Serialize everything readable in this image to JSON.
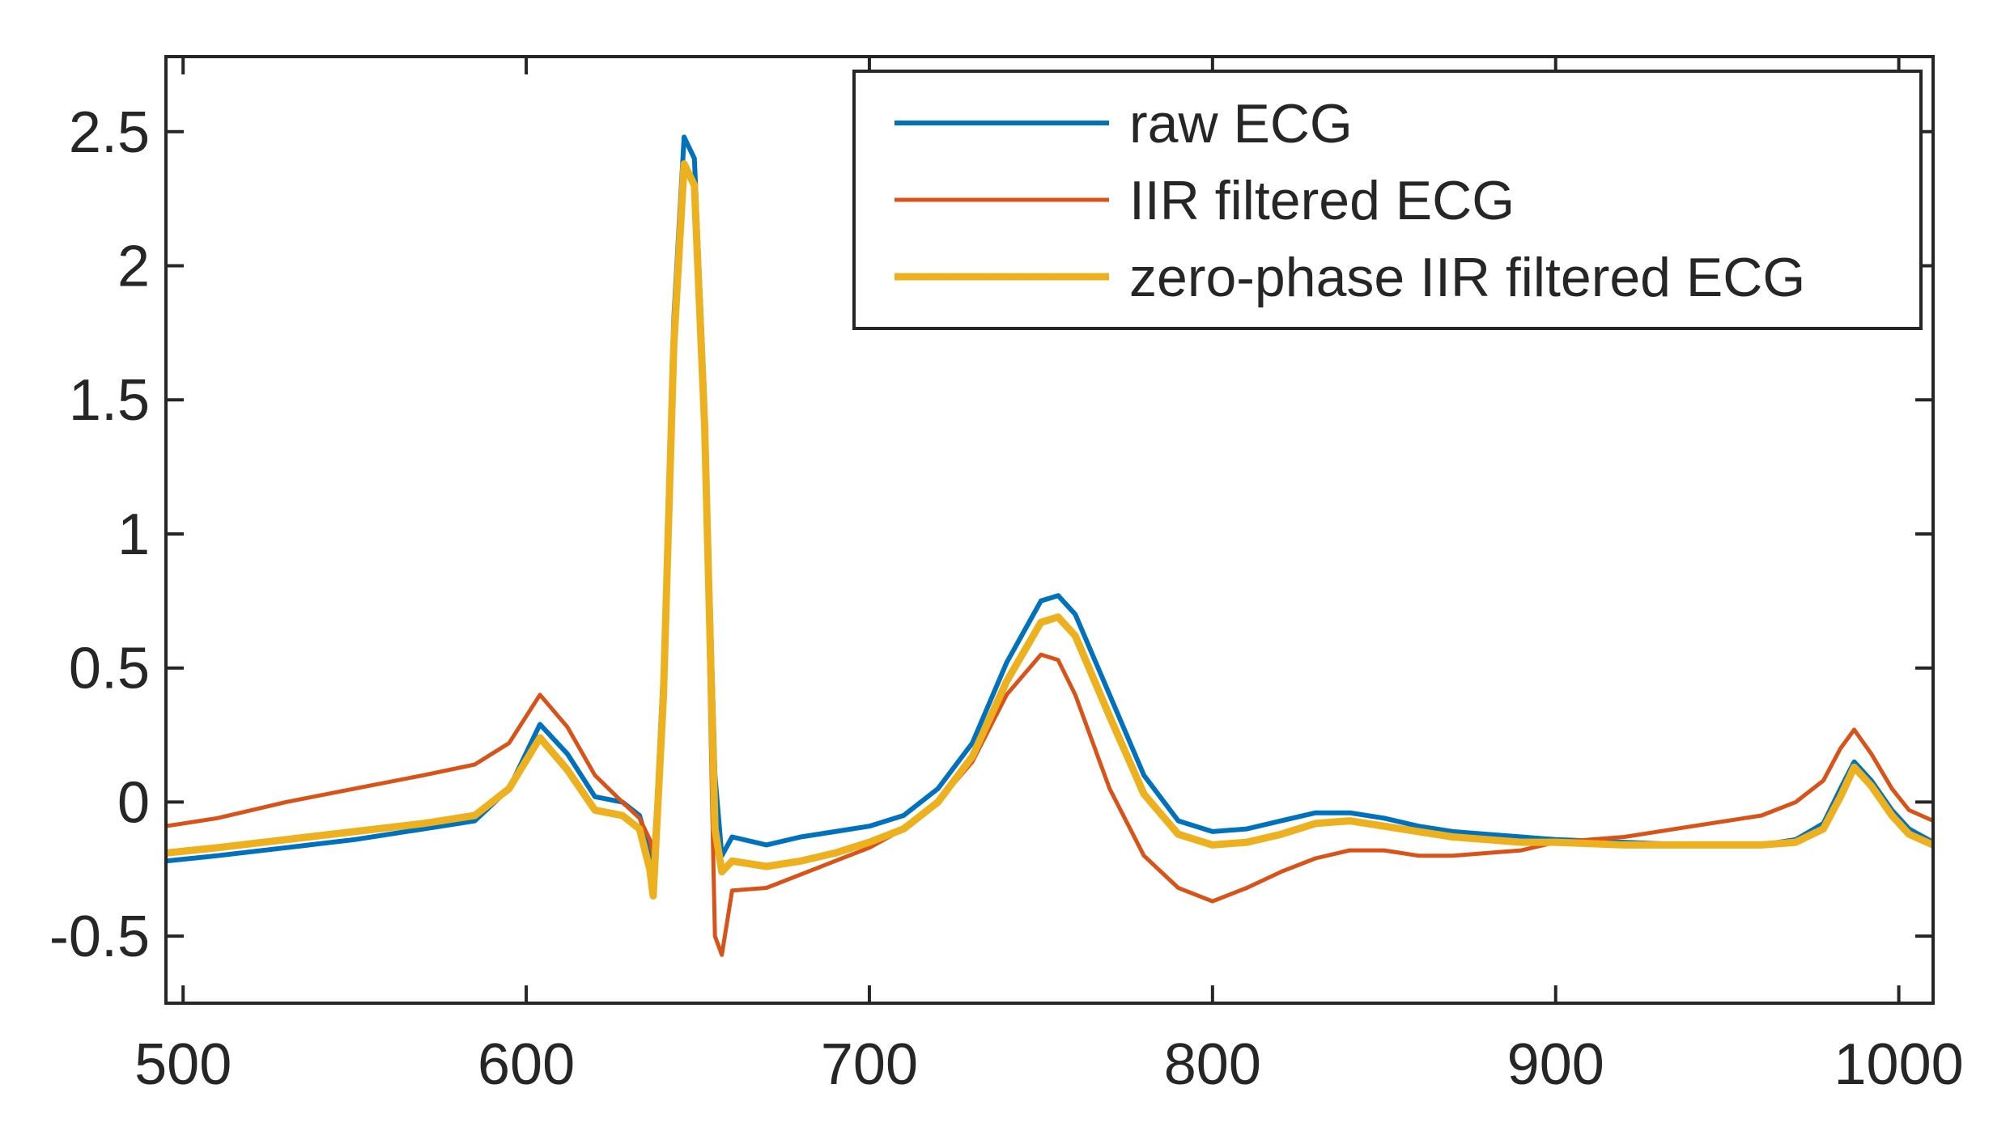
{
  "chart_data": {
    "type": "line",
    "title": "",
    "xlabel": "",
    "ylabel": "",
    "xlim": [
      495,
      1010
    ],
    "ylim": [
      -0.75,
      2.78
    ],
    "xticks": [
      500,
      600,
      700,
      800,
      900,
      1000
    ],
    "xtick_labels": [
      "500",
      "600",
      "700",
      "800",
      "900",
      "1000"
    ],
    "yticks": [
      -0.5,
      0,
      0.5,
      1,
      1.5,
      2,
      2.5
    ],
    "ytick_labels": [
      "-0.5",
      "0",
      "0.5",
      "1",
      "1.5",
      "2",
      "2.5"
    ],
    "grid": false,
    "legend_position": "top-right",
    "series": [
      {
        "name": "raw ECG",
        "color": "#0072BD",
        "points": [
          [
            495,
            -0.22
          ],
          [
            510,
            -0.2
          ],
          [
            530,
            -0.17
          ],
          [
            550,
            -0.14
          ],
          [
            570,
            -0.1
          ],
          [
            585,
            -0.07
          ],
          [
            595,
            0.05
          ],
          [
            604,
            0.29
          ],
          [
            612,
            0.18
          ],
          [
            620,
            0.02
          ],
          [
            628,
            0.0
          ],
          [
            633,
            -0.05
          ],
          [
            636,
            -0.18
          ],
          [
            637,
            -0.3
          ],
          [
            640,
            0.5
          ],
          [
            643,
            1.8
          ],
          [
            646,
            2.48
          ],
          [
            649,
            2.4
          ],
          [
            652,
            1.5
          ],
          [
            655,
            0.1
          ],
          [
            657,
            -0.2
          ],
          [
            660,
            -0.13
          ],
          [
            670,
            -0.16
          ],
          [
            680,
            -0.13
          ],
          [
            690,
            -0.11
          ],
          [
            700,
            -0.09
          ],
          [
            710,
            -0.05
          ],
          [
            720,
            0.05
          ],
          [
            730,
            0.22
          ],
          [
            740,
            0.52
          ],
          [
            750,
            0.75
          ],
          [
            755,
            0.77
          ],
          [
            760,
            0.7
          ],
          [
            770,
            0.4
          ],
          [
            780,
            0.1
          ],
          [
            790,
            -0.07
          ],
          [
            800,
            -0.11
          ],
          [
            810,
            -0.1
          ],
          [
            820,
            -0.07
          ],
          [
            830,
            -0.04
          ],
          [
            840,
            -0.04
          ],
          [
            850,
            -0.06
          ],
          [
            860,
            -0.09
          ],
          [
            870,
            -0.11
          ],
          [
            880,
            -0.12
          ],
          [
            890,
            -0.13
          ],
          [
            900,
            -0.14
          ],
          [
            920,
            -0.15
          ],
          [
            940,
            -0.16
          ],
          [
            960,
            -0.16
          ],
          [
            970,
            -0.14
          ],
          [
            978,
            -0.08
          ],
          [
            983,
            0.05
          ],
          [
            987,
            0.15
          ],
          [
            992,
            0.08
          ],
          [
            998,
            -0.03
          ],
          [
            1003,
            -0.1
          ],
          [
            1010,
            -0.15
          ]
        ]
      },
      {
        "name": "IIR filtered ECG",
        "color": "#D95319",
        "points": [
          [
            495,
            -0.09
          ],
          [
            510,
            -0.06
          ],
          [
            530,
            0.0
          ],
          [
            550,
            0.05
          ],
          [
            570,
            0.1
          ],
          [
            585,
            0.14
          ],
          [
            595,
            0.22
          ],
          [
            604,
            0.4
          ],
          [
            612,
            0.28
          ],
          [
            620,
            0.1
          ],
          [
            628,
            0.0
          ],
          [
            633,
            -0.06
          ],
          [
            636,
            -0.14
          ],
          [
            637,
            -0.2
          ],
          [
            640,
            0.4
          ],
          [
            643,
            1.7
          ],
          [
            646,
            2.38
          ],
          [
            649,
            2.3
          ],
          [
            652,
            1.3
          ],
          [
            655,
            -0.5
          ],
          [
            657,
            -0.57
          ],
          [
            660,
            -0.33
          ],
          [
            670,
            -0.32
          ],
          [
            680,
            -0.27
          ],
          [
            690,
            -0.22
          ],
          [
            700,
            -0.17
          ],
          [
            710,
            -0.1
          ],
          [
            720,
            0.0
          ],
          [
            730,
            0.15
          ],
          [
            740,
            0.4
          ],
          [
            750,
            0.55
          ],
          [
            755,
            0.53
          ],
          [
            760,
            0.4
          ],
          [
            770,
            0.05
          ],
          [
            780,
            -0.2
          ],
          [
            790,
            -0.32
          ],
          [
            800,
            -0.37
          ],
          [
            810,
            -0.32
          ],
          [
            820,
            -0.26
          ],
          [
            830,
            -0.21
          ],
          [
            840,
            -0.18
          ],
          [
            850,
            -0.18
          ],
          [
            860,
            -0.2
          ],
          [
            870,
            -0.2
          ],
          [
            880,
            -0.19
          ],
          [
            890,
            -0.18
          ],
          [
            900,
            -0.15
          ],
          [
            920,
            -0.13
          ],
          [
            940,
            -0.09
          ],
          [
            960,
            -0.05
          ],
          [
            970,
            0.0
          ],
          [
            978,
            0.08
          ],
          [
            983,
            0.2
          ],
          [
            987,
            0.27
          ],
          [
            992,
            0.18
          ],
          [
            998,
            0.05
          ],
          [
            1003,
            -0.03
          ],
          [
            1010,
            -0.07
          ]
        ]
      },
      {
        "name": "zero-phase IIR filtered ECG",
        "color": "#EDB120",
        "points": [
          [
            495,
            -0.19
          ],
          [
            510,
            -0.17
          ],
          [
            530,
            -0.14
          ],
          [
            550,
            -0.11
          ],
          [
            570,
            -0.08
          ],
          [
            585,
            -0.05
          ],
          [
            595,
            0.05
          ],
          [
            604,
            0.24
          ],
          [
            612,
            0.12
          ],
          [
            620,
            -0.03
          ],
          [
            628,
            -0.05
          ],
          [
            633,
            -0.1
          ],
          [
            636,
            -0.25
          ],
          [
            637,
            -0.35
          ],
          [
            640,
            0.4
          ],
          [
            643,
            1.7
          ],
          [
            646,
            2.38
          ],
          [
            649,
            2.3
          ],
          [
            652,
            1.4
          ],
          [
            655,
            -0.1
          ],
          [
            657,
            -0.26
          ],
          [
            660,
            -0.22
          ],
          [
            670,
            -0.24
          ],
          [
            680,
            -0.22
          ],
          [
            690,
            -0.19
          ],
          [
            700,
            -0.15
          ],
          [
            710,
            -0.1
          ],
          [
            720,
            0.0
          ],
          [
            730,
            0.17
          ],
          [
            740,
            0.45
          ],
          [
            750,
            0.67
          ],
          [
            755,
            0.69
          ],
          [
            760,
            0.62
          ],
          [
            770,
            0.32
          ],
          [
            780,
            0.03
          ],
          [
            790,
            -0.12
          ],
          [
            800,
            -0.16
          ],
          [
            810,
            -0.15
          ],
          [
            820,
            -0.12
          ],
          [
            830,
            -0.08
          ],
          [
            840,
            -0.07
          ],
          [
            850,
            -0.09
          ],
          [
            860,
            -0.11
          ],
          [
            870,
            -0.13
          ],
          [
            880,
            -0.14
          ],
          [
            890,
            -0.15
          ],
          [
            900,
            -0.15
          ],
          [
            920,
            -0.16
          ],
          [
            940,
            -0.16
          ],
          [
            960,
            -0.16
          ],
          [
            970,
            -0.15
          ],
          [
            978,
            -0.1
          ],
          [
            983,
            0.02
          ],
          [
            987,
            0.13
          ],
          [
            992,
            0.06
          ],
          [
            998,
            -0.05
          ],
          [
            1003,
            -0.12
          ],
          [
            1010,
            -0.16
          ]
        ]
      }
    ]
  }
}
